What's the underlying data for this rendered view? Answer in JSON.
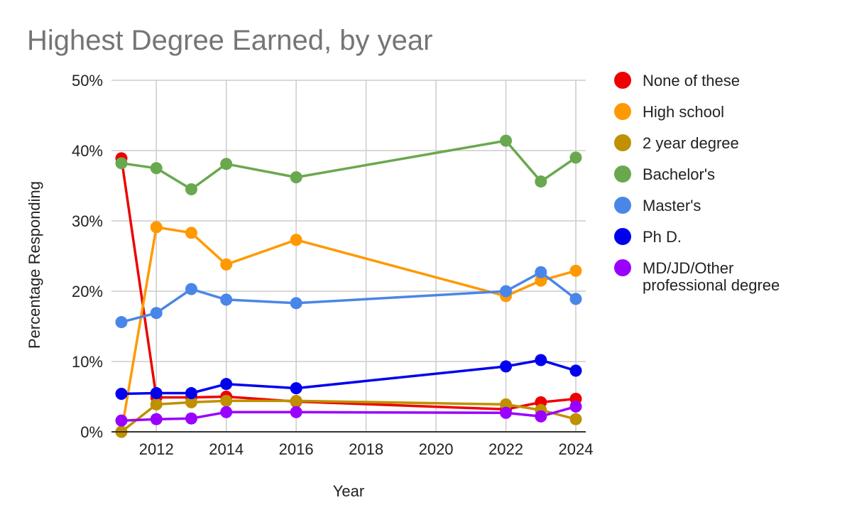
{
  "chart_data": {
    "type": "line",
    "title": "Highest Degree Earned, by year",
    "xlabel": "Year",
    "ylabel": "Percentage Responding",
    "xlim": [
      2011,
      2024
    ],
    "ylim": [
      0,
      50
    ],
    "x_ticks": [
      2012,
      2014,
      2016,
      2018,
      2020,
      2022,
      2024
    ],
    "y_ticks": [
      0,
      10,
      20,
      30,
      40,
      50
    ],
    "y_tick_labels": [
      "0%",
      "10%",
      "20%",
      "30%",
      "40%",
      "50%"
    ],
    "grid": true,
    "legend_position": "right",
    "series": [
      {
        "name": "None of these",
        "color": "#ee0000",
        "x": [
          2011,
          2012,
          2013,
          2014,
          2016,
          2022,
          2023,
          2024
        ],
        "y": [
          38.9,
          4.9,
          4.9,
          5.0,
          4.3,
          3.2,
          4.2,
          4.7
        ]
      },
      {
        "name": "High school",
        "color": "#ff9900",
        "x": [
          2011,
          2012,
          2013,
          2014,
          2016,
          2022,
          2023,
          2024
        ],
        "y": [
          0.0,
          29.1,
          28.3,
          23.8,
          27.3,
          19.3,
          21.5,
          22.9
        ]
      },
      {
        "name": "2 year degree",
        "color": "#bf9000",
        "x": [
          2011,
          2012,
          2013,
          2014,
          2016,
          2022,
          2023,
          2024
        ],
        "y": [
          0.0,
          3.9,
          4.2,
          4.4,
          4.4,
          3.9,
          3.1,
          1.8
        ]
      },
      {
        "name": "Bachelor's",
        "color": "#6aa84f",
        "x": [
          2011,
          2012,
          2013,
          2014,
          2016,
          2022,
          2023,
          2024
        ],
        "y": [
          38.2,
          37.5,
          34.5,
          38.1,
          36.2,
          41.4,
          35.6,
          39.0
        ]
      },
      {
        "name": "Master's",
        "color": "#4a86e8",
        "x": [
          2011,
          2012,
          2013,
          2014,
          2016,
          2022,
          2023,
          2024
        ],
        "y": [
          15.6,
          16.9,
          20.3,
          18.8,
          18.3,
          20.0,
          22.7,
          18.9
        ]
      },
      {
        "name": "Ph D.",
        "color": "#0000ee",
        "x": [
          2011,
          2012,
          2013,
          2014,
          2016,
          2022,
          2023,
          2024
        ],
        "y": [
          5.4,
          5.5,
          5.5,
          6.8,
          6.2,
          9.3,
          10.2,
          8.7
        ]
      },
      {
        "name": "MD/JD/Other professional degree",
        "color": "#9900ff",
        "x": [
          2011,
          2012,
          2013,
          2014,
          2016,
          2022,
          2023,
          2024
        ],
        "y": [
          1.6,
          1.8,
          1.9,
          2.8,
          2.8,
          2.7,
          2.2,
          3.6
        ]
      }
    ]
  }
}
